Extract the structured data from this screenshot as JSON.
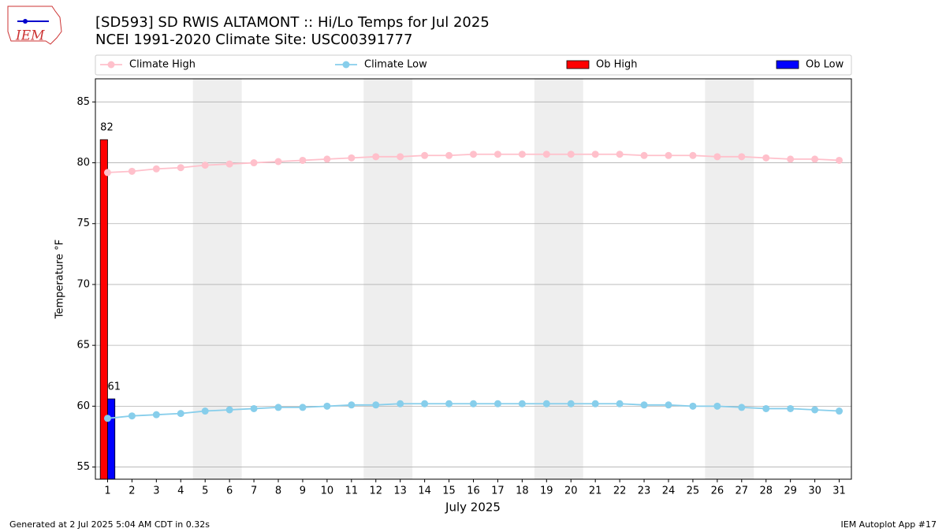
{
  "logo_text": "IEM",
  "footer": {
    "left": "Generated at 2 Jul 2025 5:04 AM CDT in 0.32s",
    "right": "IEM Autoplot App #17"
  },
  "chart_data": {
    "type": "line",
    "title": "[SD593] SD RWIS ALTAMONT :: Hi/Lo Temps for Jul 2025",
    "subtitle": "NCEI 1991-2020 Climate Site: USC00391777",
    "xlabel": "July 2025",
    "ylabel": "Temperature °F",
    "x": [
      1,
      2,
      3,
      4,
      5,
      6,
      7,
      8,
      9,
      10,
      11,
      12,
      13,
      14,
      15,
      16,
      17,
      18,
      19,
      20,
      21,
      22,
      23,
      24,
      25,
      26,
      27,
      28,
      29,
      30,
      31
    ],
    "xlim": [
      0.5,
      31.5
    ],
    "xticks": [
      1,
      2,
      3,
      4,
      5,
      6,
      7,
      8,
      9,
      10,
      11,
      12,
      13,
      14,
      15,
      16,
      17,
      18,
      19,
      20,
      21,
      22,
      23,
      24,
      25,
      26,
      27,
      28,
      29,
      30,
      31
    ],
    "ylim": [
      54,
      86.9
    ],
    "yticks": [
      55,
      60,
      65,
      70,
      75,
      80,
      85
    ],
    "grid": true,
    "weekend_spans": [
      [
        4.5,
        6.5
      ],
      [
        11.5,
        13.5
      ],
      [
        18.5,
        20.5
      ],
      [
        25.5,
        27.5
      ]
    ],
    "series": [
      {
        "name": "Climate High",
        "type": "line",
        "color": "#ffc0cb",
        "values": [
          79.2,
          79.3,
          79.5,
          79.6,
          79.8,
          79.9,
          80.0,
          80.1,
          80.2,
          80.3,
          80.4,
          80.5,
          80.5,
          80.6,
          80.6,
          80.7,
          80.7,
          80.7,
          80.7,
          80.7,
          80.7,
          80.7,
          80.6,
          80.6,
          80.6,
          80.5,
          80.5,
          80.4,
          80.3,
          80.3,
          80.2
        ]
      },
      {
        "name": "Climate Low",
        "type": "line",
        "color": "#87ceeb",
        "values": [
          59.0,
          59.2,
          59.3,
          59.4,
          59.6,
          59.7,
          59.8,
          59.9,
          59.9,
          60.0,
          60.1,
          60.1,
          60.2,
          60.2,
          60.2,
          60.2,
          60.2,
          60.2,
          60.2,
          60.2,
          60.2,
          60.2,
          60.1,
          60.1,
          60.0,
          60.0,
          59.9,
          59.8,
          59.8,
          59.7,
          59.6
        ]
      },
      {
        "name": "Ob High",
        "type": "bar",
        "color": "#ff0000",
        "x": [
          1
        ],
        "values": [
          81.9
        ],
        "value_labels": [
          "82"
        ]
      },
      {
        "name": "Ob Low",
        "type": "bar",
        "color": "#0000ff",
        "x": [
          1
        ],
        "values": [
          60.6
        ],
        "value_labels": [
          "61"
        ]
      }
    ]
  }
}
